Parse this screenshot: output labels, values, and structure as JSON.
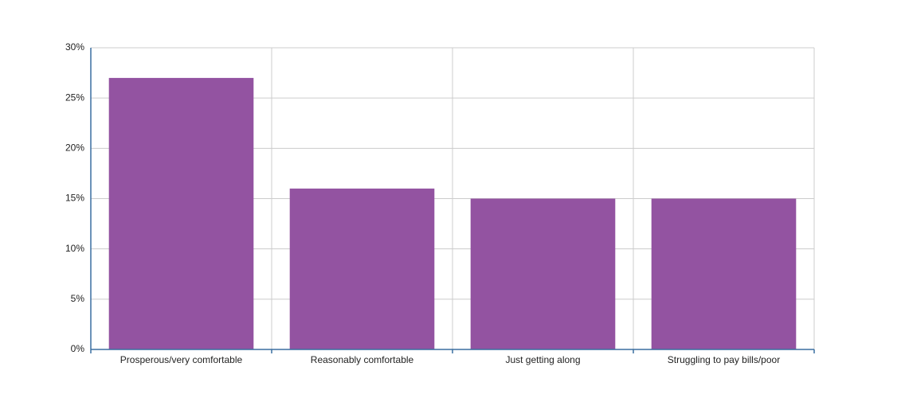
{
  "chart_data": {
    "type": "bar",
    "categories": [
      "Prosperous/very comfortable",
      "Reasonably comfortable",
      "Just getting along",
      "Struggling to pay bills/poor"
    ],
    "values": [
      27,
      16,
      15,
      15
    ],
    "color": "#9353a1",
    "ylim": [
      0,
      30
    ],
    "yticks": [
      {
        "value": 0,
        "label": "0%"
      },
      {
        "value": 5,
        "label": "5%"
      },
      {
        "value": 10,
        "label": "10%"
      },
      {
        "value": 15,
        "label": "15%"
      },
      {
        "value": 20,
        "label": "20%"
      },
      {
        "value": 25,
        "label": "25%"
      },
      {
        "value": 30,
        "label": "30%"
      }
    ],
    "grid": true
  }
}
